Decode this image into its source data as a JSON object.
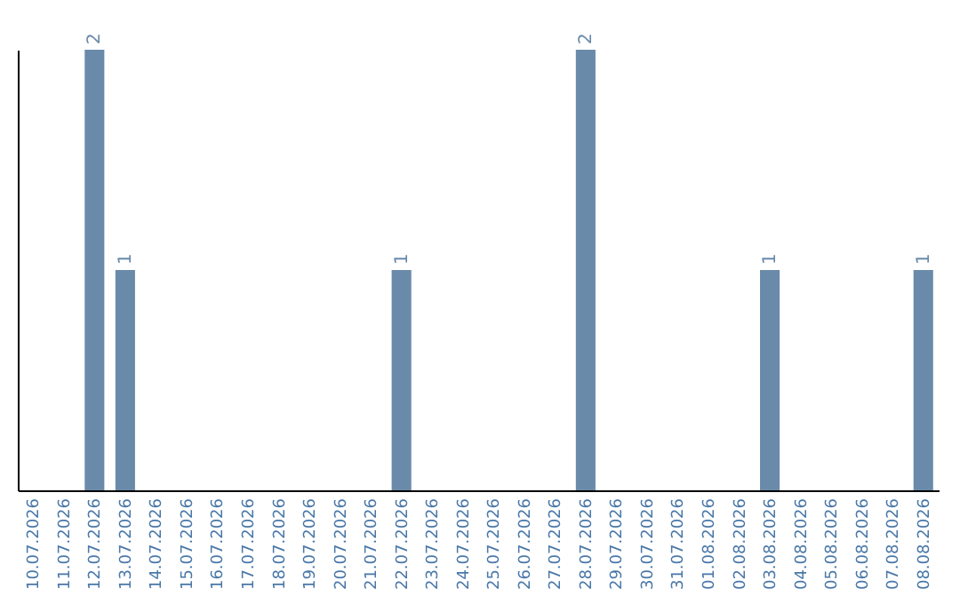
{
  "chart_data": {
    "type": "bar",
    "categories": [
      "10.07.2026",
      "11.07.2026",
      "12.07.2026",
      "13.07.2026",
      "14.07.2026",
      "15.07.2026",
      "16.07.2026",
      "17.07.2026",
      "18.07.2026",
      "19.07.2026",
      "20.07.2026",
      "21.07.2026",
      "22.07.2026",
      "23.07.2026",
      "24.07.2026",
      "25.07.2026",
      "26.07.2026",
      "27.07.2026",
      "28.07.2026",
      "29.07.2026",
      "30.07.2026",
      "31.07.2026",
      "01.08.2026",
      "02.08.2026",
      "03.08.2026",
      "04.08.2026",
      "05.08.2026",
      "06.08.2026",
      "07.08.2026",
      "08.08.2026"
    ],
    "values": [
      0,
      0,
      2,
      1,
      0,
      0,
      0,
      0,
      0,
      0,
      0,
      0,
      1,
      0,
      0,
      0,
      0,
      0,
      2,
      0,
      0,
      0,
      0,
      0,
      1,
      0,
      0,
      0,
      0,
      1
    ],
    "value_labels": [
      null,
      null,
      "2",
      "1",
      null,
      null,
      null,
      null,
      null,
      null,
      null,
      null,
      "1",
      null,
      null,
      null,
      null,
      null,
      "2",
      null,
      null,
      null,
      null,
      null,
      "1",
      null,
      null,
      null,
      null,
      "1"
    ],
    "color": "#6a8aaa",
    "grid": false,
    "tick_labels": "x"
  }
}
